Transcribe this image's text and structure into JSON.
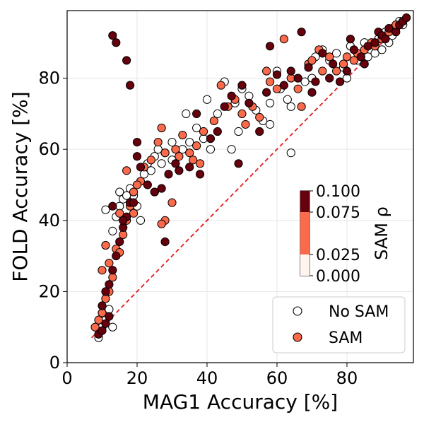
{
  "chart_data": {
    "type": "scatter",
    "title": "",
    "xlabel": "MAG1 Accuracy [%]",
    "ylabel": "FOLD Accuracy [%]",
    "xlim": [
      0,
      99
    ],
    "ylim": [
      0,
      99
    ],
    "xticks": [
      0,
      20,
      40,
      60,
      80
    ],
    "yticks": [
      0,
      20,
      40,
      60,
      80
    ],
    "grid": true,
    "legend": {
      "placement": "lower-right",
      "entries": [
        {
          "label": "No SAM",
          "style": "hollow",
          "color": "#ffffff"
        },
        {
          "label": "SAM",
          "style": "filled",
          "color": "#fb6a4a"
        }
      ]
    },
    "reference_line": {
      "label": "",
      "x": [
        7,
        97
      ],
      "y": [
        7,
        97
      ],
      "color": "#e41a1c",
      "style": "dashed"
    },
    "colorbar": {
      "label": "SAM ρ",
      "ticks": [
        "0.100",
        "0.075",
        "0.025",
        "0.000"
      ],
      "levels": [
        {
          "range": [
            0.075,
            0.1
          ],
          "color": "#67000d"
        },
        {
          "range": [
            0.025,
            0.075
          ],
          "color": "#fb6a4a"
        },
        {
          "range": [
            0.0,
            0.025
          ],
          "color": "#fff5f0"
        }
      ]
    },
    "series": [
      {
        "name": "No SAM",
        "rho": 0.0,
        "color": "#ffffff",
        "points": [
          [
            9,
            7
          ],
          [
            10,
            10
          ],
          [
            11,
            12
          ],
          [
            13,
            10
          ],
          [
            12,
            15
          ],
          [
            11,
            43
          ],
          [
            14,
            41
          ],
          [
            13,
            37
          ],
          [
            15,
            44
          ],
          [
            15,
            48
          ],
          [
            16,
            46
          ],
          [
            18,
            49
          ],
          [
            19,
            47
          ],
          [
            20,
            44
          ],
          [
            22,
            53
          ],
          [
            21,
            40
          ],
          [
            23,
            56
          ],
          [
            25,
            58
          ],
          [
            26,
            60
          ],
          [
            27,
            56
          ],
          [
            28,
            59
          ],
          [
            30,
            57
          ],
          [
            30,
            62
          ],
          [
            33,
            60
          ],
          [
            35,
            62
          ],
          [
            34,
            70
          ],
          [
            37,
            66
          ],
          [
            39,
            63
          ],
          [
            40,
            74
          ],
          [
            41,
            60
          ],
          [
            43,
            70
          ],
          [
            45,
            79
          ],
          [
            47,
            60
          ],
          [
            48,
            73
          ],
          [
            49,
            65
          ],
          [
            50,
            77
          ],
          [
            52,
            75
          ],
          [
            54,
            71
          ],
          [
            56,
            68
          ],
          [
            58,
            73
          ],
          [
            58,
            67
          ],
          [
            60,
            82
          ],
          [
            61,
            77
          ],
          [
            63,
            74
          ],
          [
            64,
            59
          ],
          [
            64,
            72
          ],
          [
            66,
            80
          ],
          [
            68,
            79
          ],
          [
            70,
            80
          ],
          [
            71,
            86
          ],
          [
            73,
            88
          ],
          [
            75,
            85
          ],
          [
            77,
            87
          ],
          [
            79,
            83
          ],
          [
            80,
            80
          ],
          [
            81,
            89
          ],
          [
            83,
            85
          ],
          [
            85,
            90
          ],
          [
            86,
            86
          ],
          [
            88,
            87
          ],
          [
            89,
            91
          ],
          [
            90,
            88
          ],
          [
            91,
            93
          ],
          [
            92,
            90
          ],
          [
            93,
            92
          ],
          [
            94,
            94
          ],
          [
            95,
            96
          ],
          [
            96,
            95
          ],
          [
            17,
            47
          ],
          [
            24,
            54
          ]
        ]
      },
      {
        "name": "SAM",
        "rho": 0.05,
        "color": "#fb6a4a",
        "points": [
          [
            8,
            10
          ],
          [
            9,
            12
          ],
          [
            10,
            14
          ],
          [
            11,
            18
          ],
          [
            12,
            20
          ],
          [
            10,
            26
          ],
          [
            12,
            28
          ],
          [
            13,
            24
          ],
          [
            11,
            33
          ],
          [
            14,
            32
          ],
          [
            15,
            31
          ],
          [
            16,
            36
          ],
          [
            15,
            42
          ],
          [
            17,
            40
          ],
          [
            18,
            44
          ],
          [
            19,
            42
          ],
          [
            19,
            48
          ],
          [
            21,
            51
          ],
          [
            22,
            55
          ],
          [
            24,
            57
          ],
          [
            26,
            62
          ],
          [
            27,
            66
          ],
          [
            28,
            59
          ],
          [
            28,
            40
          ],
          [
            27,
            39
          ],
          [
            31,
            60
          ],
          [
            32,
            58
          ],
          [
            33,
            64
          ],
          [
            35,
            59
          ],
          [
            36,
            57
          ],
          [
            37,
            61
          ],
          [
            38,
            56
          ],
          [
            39,
            65
          ],
          [
            42,
            68
          ],
          [
            44,
            78
          ],
          [
            46,
            72
          ],
          [
            48,
            74
          ],
          [
            50,
            70
          ],
          [
            51,
            67
          ],
          [
            53,
            72
          ],
          [
            55,
            69
          ],
          [
            57,
            82
          ],
          [
            58,
            79
          ],
          [
            60,
            77
          ],
          [
            62,
            91
          ],
          [
            64,
            80
          ],
          [
            66,
            77
          ],
          [
            67,
            72
          ],
          [
            69,
            84
          ],
          [
            70,
            85
          ],
          [
            72,
            88
          ],
          [
            73,
            82
          ],
          [
            75,
            86
          ],
          [
            77,
            82
          ],
          [
            79,
            84
          ],
          [
            80,
            86
          ],
          [
            82,
            85
          ],
          [
            83,
            87
          ],
          [
            85,
            88
          ],
          [
            87,
            90
          ],
          [
            88,
            89
          ],
          [
            90,
            91
          ],
          [
            92,
            93
          ],
          [
            93,
            94
          ],
          [
            94,
            95
          ],
          [
            96,
            96
          ],
          [
            17,
            54
          ],
          [
            20,
            50
          ],
          [
            25,
            48
          ],
          [
            30,
            45
          ]
        ]
      },
      {
        "name": "SAM",
        "rho": 0.09,
        "color": "#67000d",
        "points": [
          [
            13,
            92
          ],
          [
            14,
            90
          ],
          [
            17,
            85
          ],
          [
            18,
            78
          ],
          [
            9,
            8
          ],
          [
            10,
            9
          ],
          [
            11,
            11
          ],
          [
            12,
            13
          ],
          [
            10,
            16
          ],
          [
            11,
            20
          ],
          [
            12,
            22
          ],
          [
            13,
            26
          ],
          [
            14,
            30
          ],
          [
            15,
            34
          ],
          [
            16,
            38
          ],
          [
            17,
            41
          ],
          [
            18,
            45
          ],
          [
            20,
            58
          ],
          [
            20,
            62
          ],
          [
            21,
            55
          ],
          [
            23,
            50
          ],
          [
            25,
            48
          ],
          [
            27,
            49
          ],
          [
            28,
            34
          ],
          [
            29,
            53
          ],
          [
            31,
            56
          ],
          [
            32,
            54
          ],
          [
            35,
            55
          ],
          [
            37,
            70
          ],
          [
            38,
            53
          ],
          [
            41,
            63
          ],
          [
            43,
            65
          ],
          [
            45,
            72
          ],
          [
            47,
            75
          ],
          [
            49,
            56
          ],
          [
            50,
            78
          ],
          [
            52,
            73
          ],
          [
            55,
            65
          ],
          [
            57,
            76
          ],
          [
            58,
            89
          ],
          [
            60,
            81
          ],
          [
            62,
            78
          ],
          [
            64,
            82
          ],
          [
            66,
            80
          ],
          [
            67,
            93
          ],
          [
            69,
            83
          ],
          [
            70,
            76
          ],
          [
            71,
            79
          ],
          [
            73,
            87
          ],
          [
            75,
            80
          ],
          [
            76,
            84
          ],
          [
            78,
            79
          ],
          [
            80,
            82
          ],
          [
            81,
            91
          ],
          [
            82,
            88
          ],
          [
            84,
            86
          ],
          [
            85,
            84
          ],
          [
            86,
            89
          ],
          [
            88,
            90
          ],
          [
            89,
            93
          ],
          [
            90,
            92
          ],
          [
            91,
            91
          ],
          [
            92,
            94
          ],
          [
            94,
            93
          ],
          [
            95,
            95
          ],
          [
            96,
            96
          ],
          [
            97,
            97
          ],
          [
            13,
            44
          ],
          [
            16,
            40
          ],
          [
            19,
            45
          ]
        ]
      }
    ]
  }
}
